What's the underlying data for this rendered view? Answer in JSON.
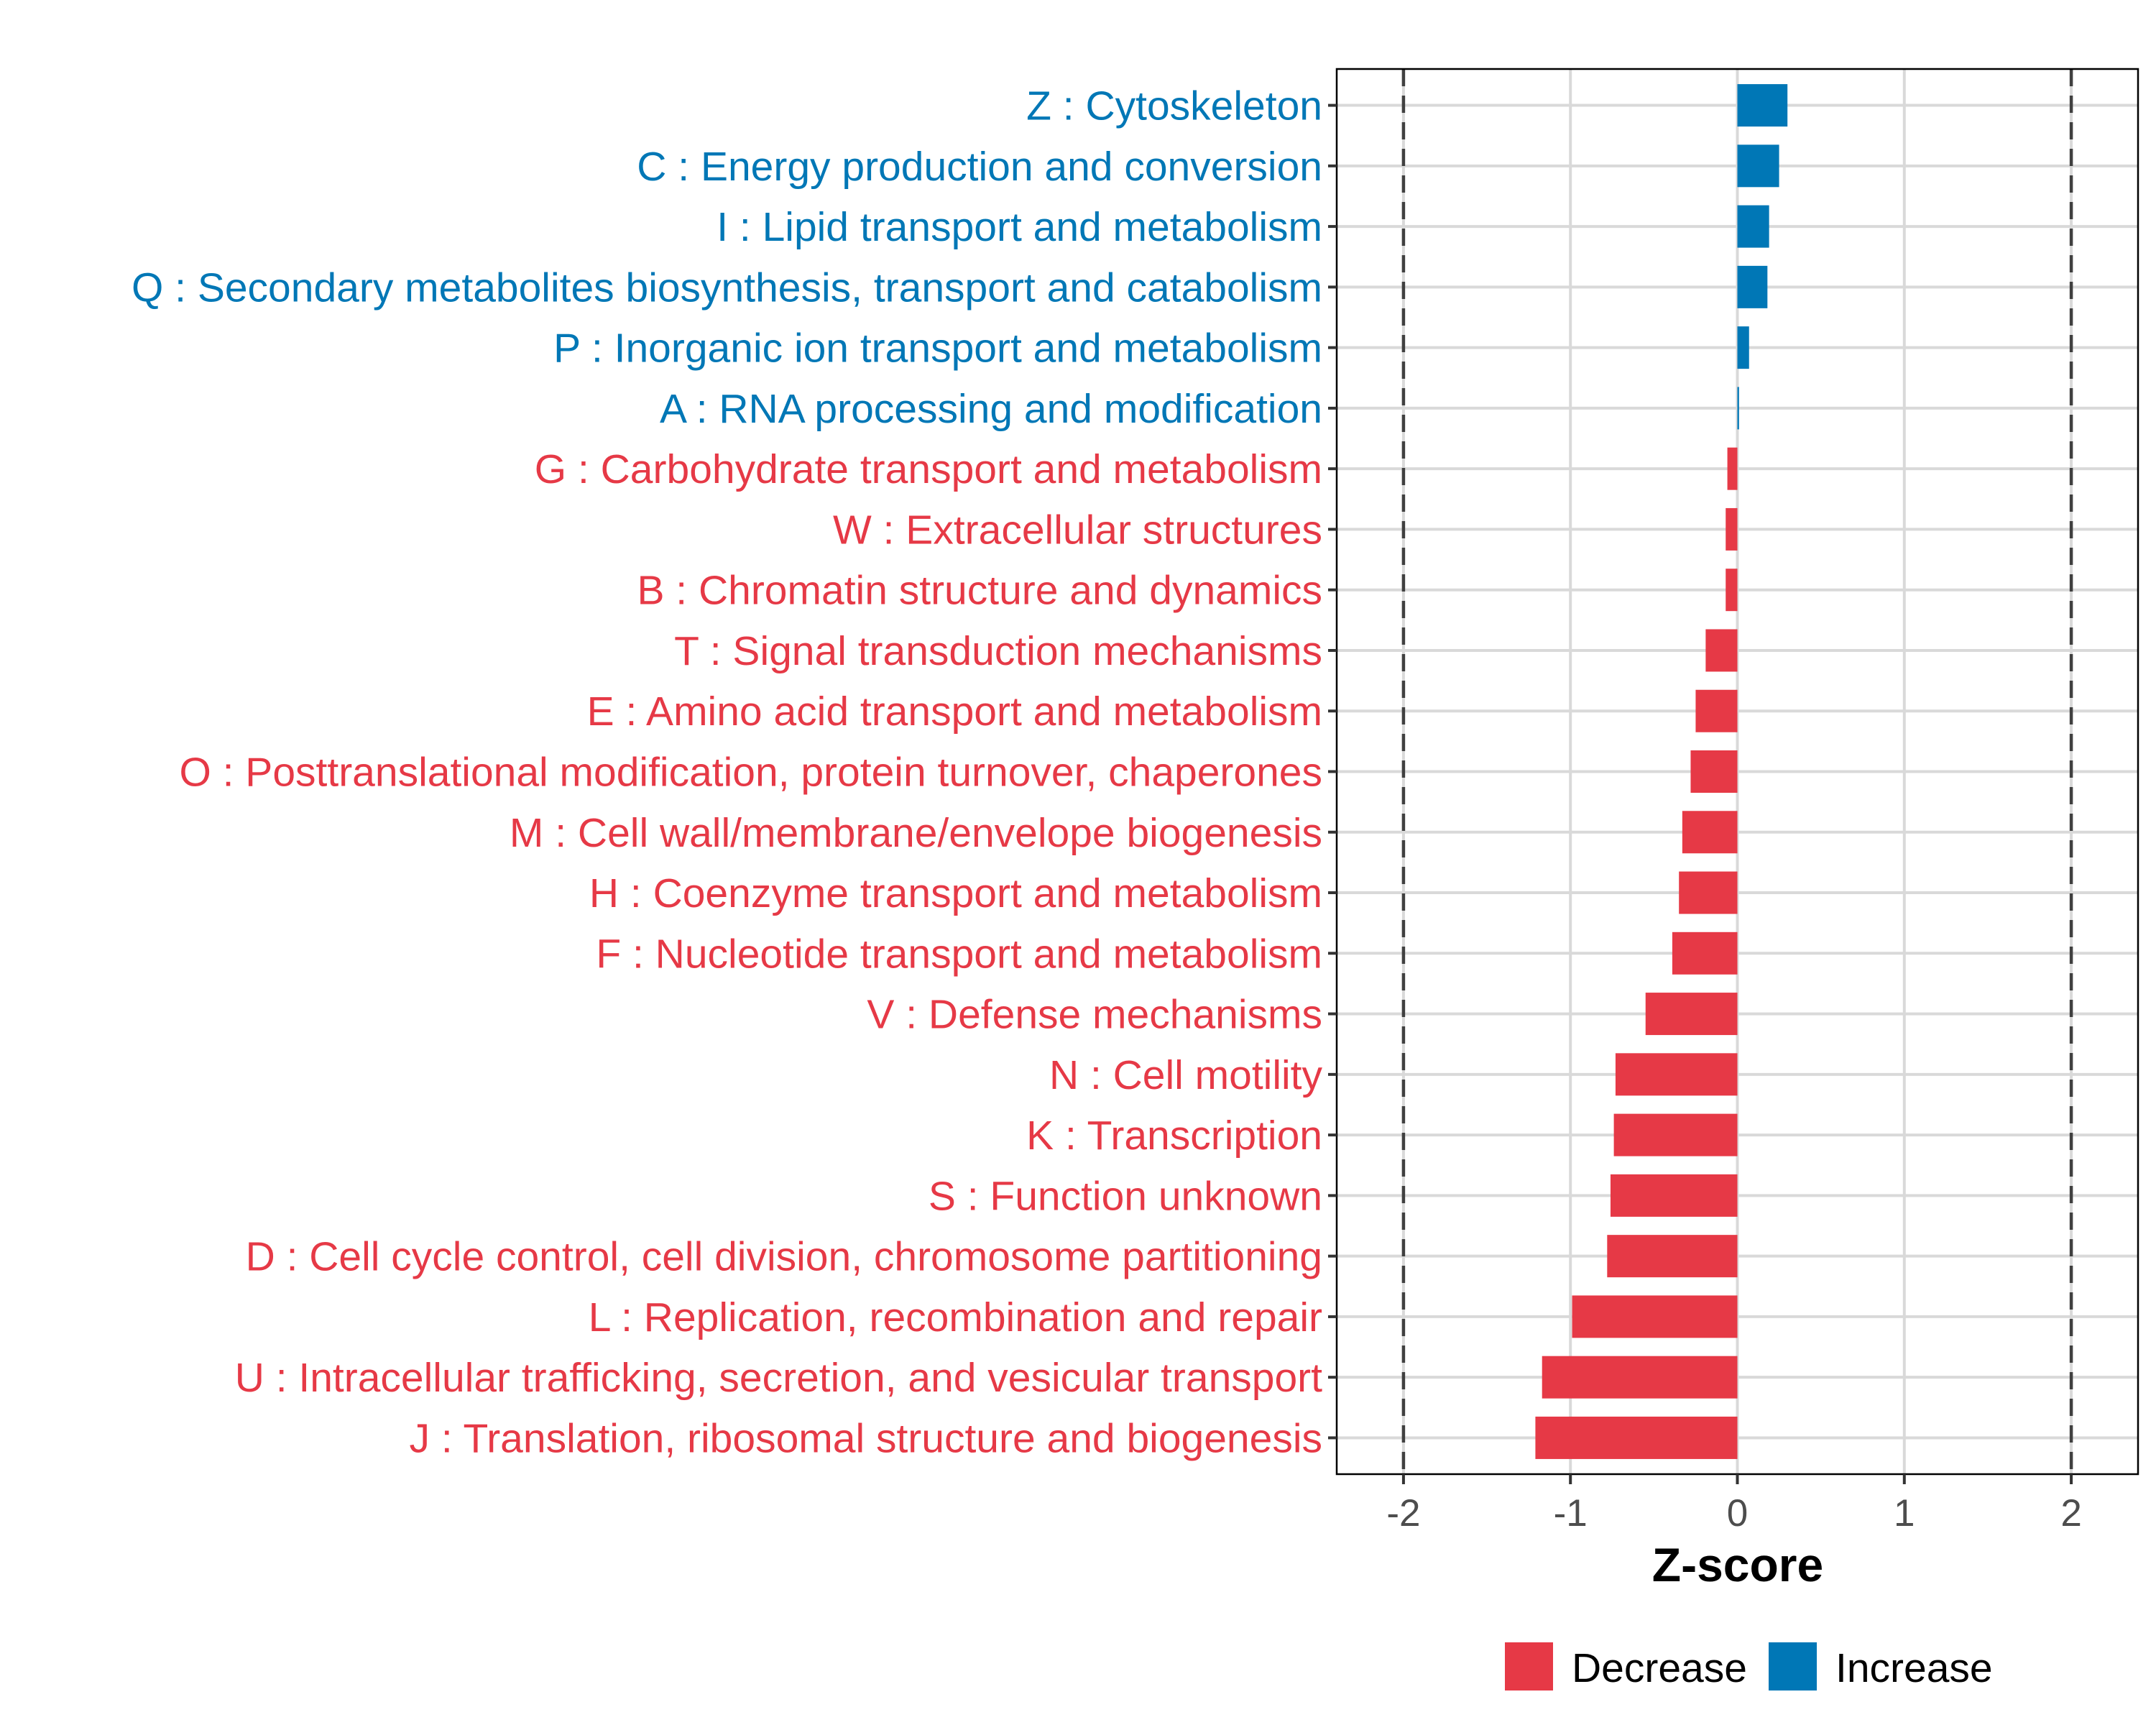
{
  "chart_data": {
    "type": "bar",
    "orientation": "horizontal",
    "title": "",
    "xlabel": "Z-score",
    "ylabel": "",
    "xlim": [
      -2.4,
      2.4
    ],
    "x_ticks": [
      -2,
      -1,
      0,
      1,
      2
    ],
    "x_tick_labels": [
      "-2",
      "-1",
      "0",
      "1",
      "2"
    ],
    "reference_lines": [
      -2,
      2
    ],
    "grid": true,
    "legend_position": "bottom",
    "colors": {
      "Decrease": "#E63946",
      "Increase": "#0077B6"
    },
    "legend": [
      {
        "label": "Decrease",
        "color": "#E63946"
      },
      {
        "label": "Increase",
        "color": "#0077B6"
      }
    ],
    "categories": [
      "Z : Cytoskeleton",
      "C : Energy production and conversion",
      "I : Lipid transport and metabolism",
      "Q : Secondary metabolites biosynthesis, transport and catabolism",
      "P : Inorganic ion transport and metabolism",
      "A : RNA processing and modification",
      "G : Carbohydrate transport and metabolism",
      "W : Extracellular structures",
      "B : Chromatin structure and dynamics",
      "T : Signal transduction mechanisms",
      "E : Amino acid transport and metabolism",
      "O : Posttranslational modification, protein turnover, chaperones",
      "M : Cell wall/membrane/envelope biogenesis",
      "H : Coenzyme transport and metabolism",
      "F : Nucleotide transport and metabolism",
      "V : Defense mechanisms",
      "N : Cell motility",
      "K : Transcription",
      "S : Function unknown",
      "D : Cell cycle control, cell division, chromosome partitioning",
      "L : Replication, recombination and repair",
      "U : Intracellular trafficking, secretion, and vesicular transport",
      "J : Translation, ribosomal structure and biogenesis"
    ],
    "values": [
      0.3,
      0.25,
      0.19,
      0.18,
      0.07,
      0.01,
      -0.06,
      -0.07,
      -0.07,
      -0.19,
      -0.25,
      -0.28,
      -0.33,
      -0.35,
      -0.39,
      -0.55,
      -0.73,
      -0.74,
      -0.76,
      -0.78,
      -0.99,
      -1.17,
      -1.21
    ],
    "groups": [
      "Increase",
      "Increase",
      "Increase",
      "Increase",
      "Increase",
      "Increase",
      "Decrease",
      "Decrease",
      "Decrease",
      "Decrease",
      "Decrease",
      "Decrease",
      "Decrease",
      "Decrease",
      "Decrease",
      "Decrease",
      "Decrease",
      "Decrease",
      "Decrease",
      "Decrease",
      "Decrease",
      "Decrease",
      "Decrease"
    ]
  }
}
